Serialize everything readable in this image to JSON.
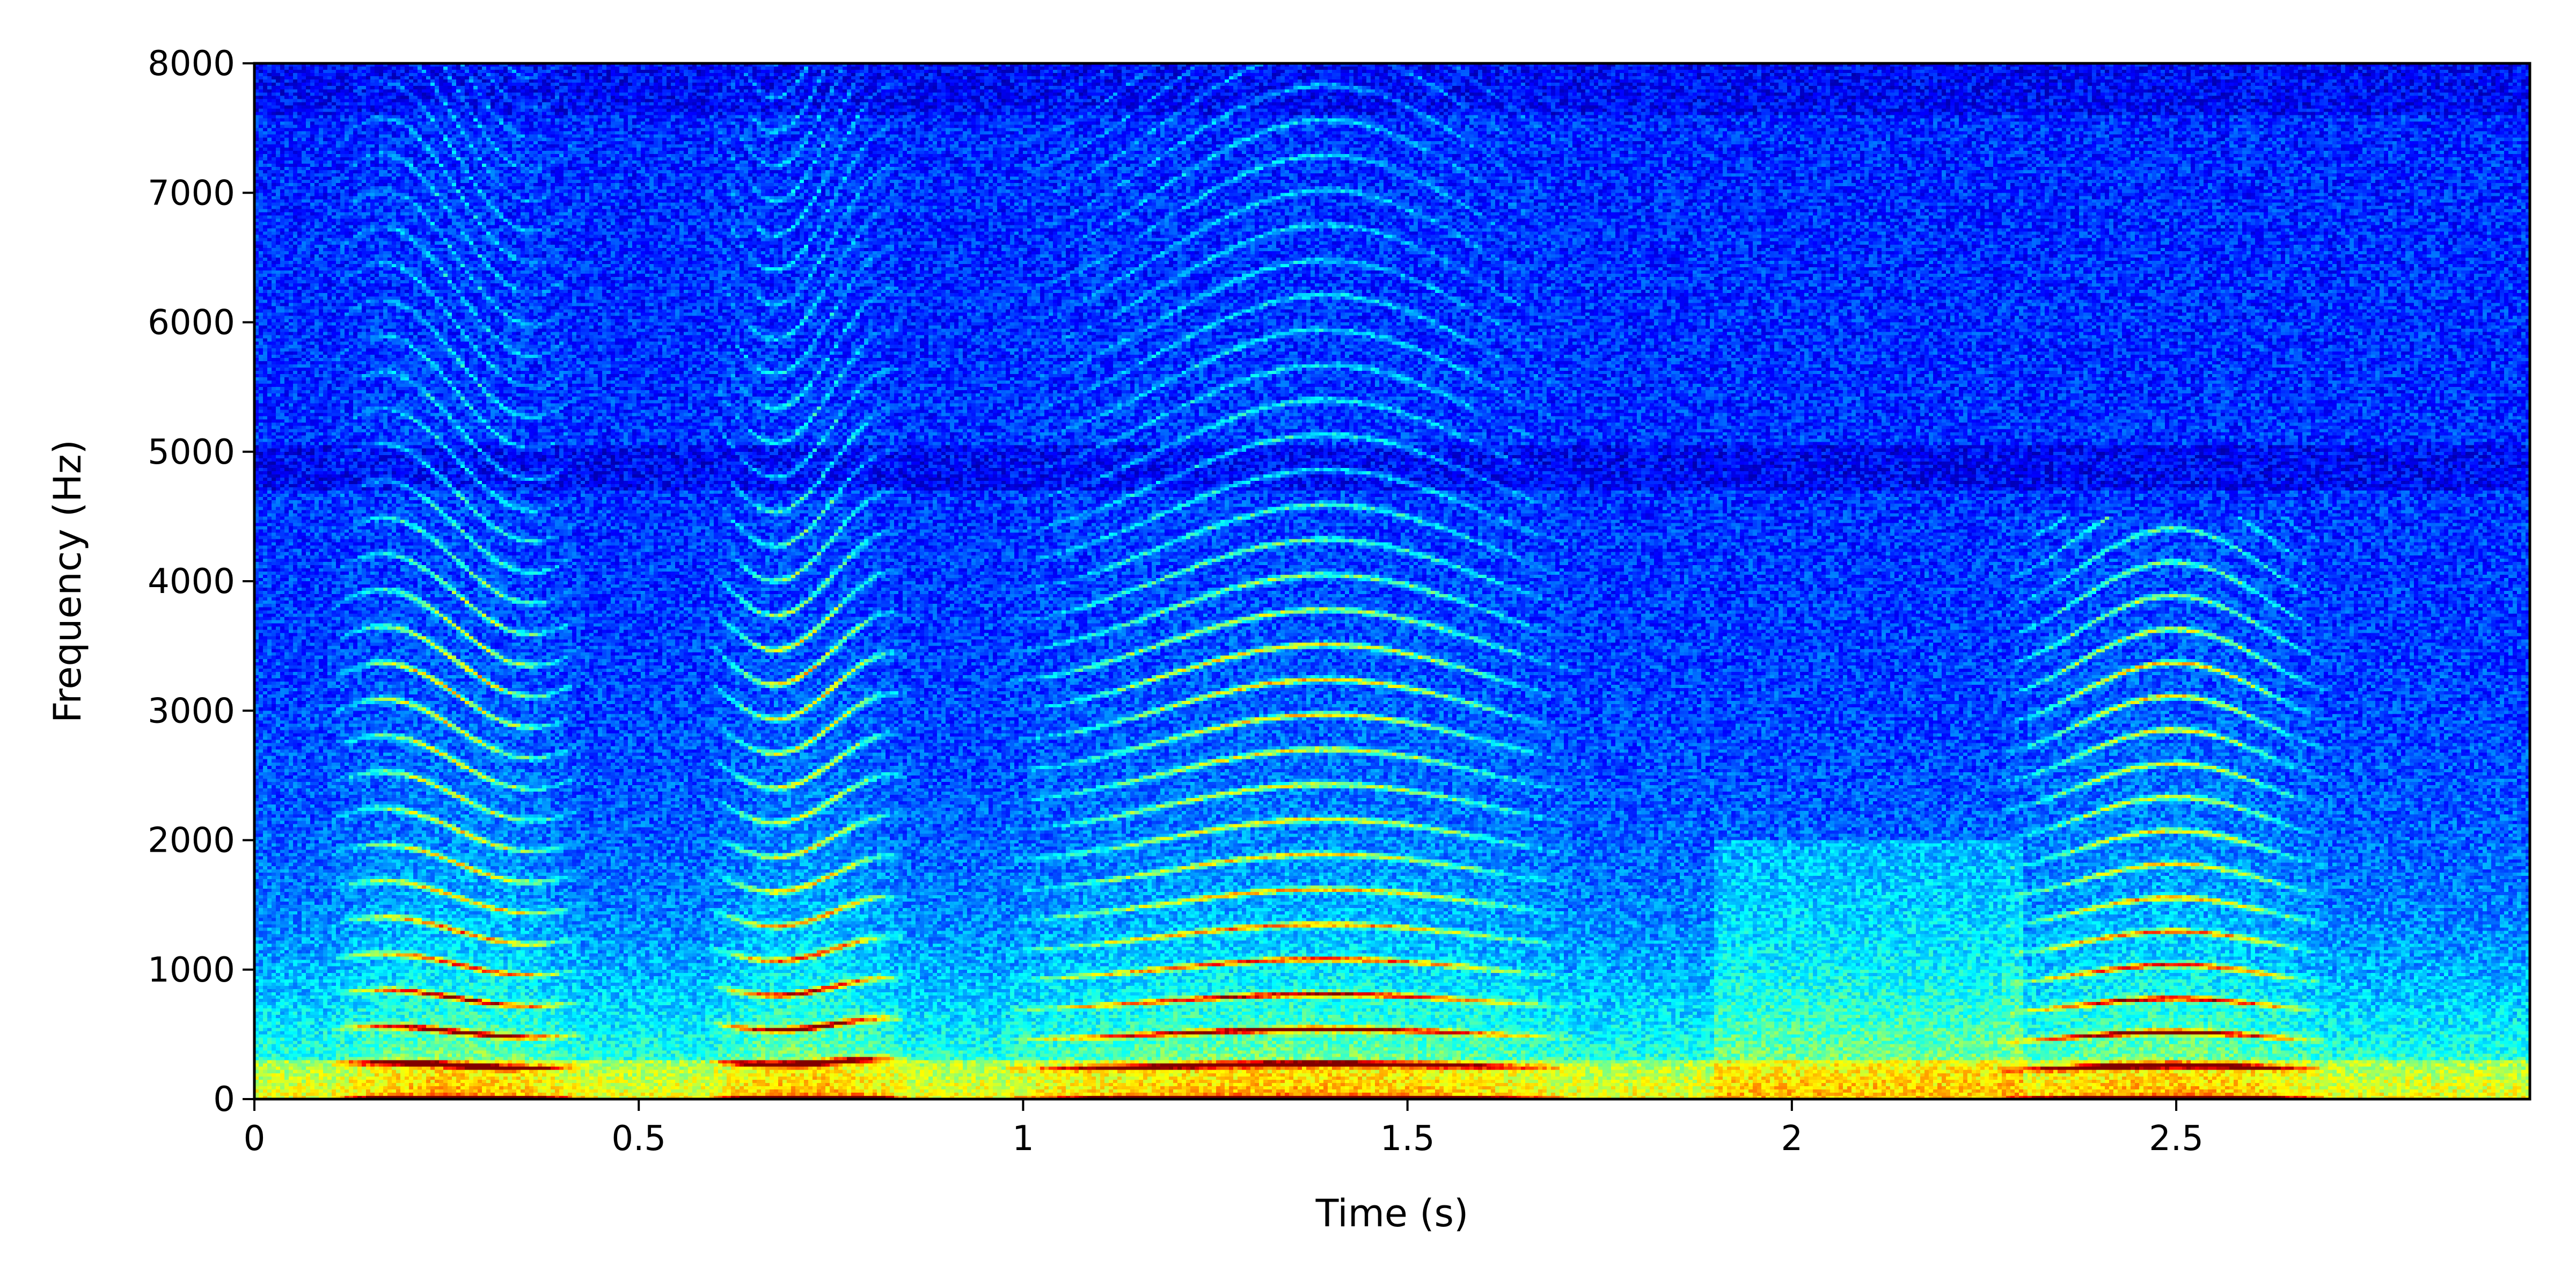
{
  "chart_data": {
    "type": "heatmap",
    "title": "",
    "xlabel": "Time (s)",
    "ylabel": "Frequency (Hz)",
    "xlim": [
      0,
      2.96
    ],
    "ylim": [
      0,
      8000
    ],
    "x_ticks": [
      0,
      0.5,
      1,
      1.5,
      2,
      2.5
    ],
    "x_tick_labels": [
      "0",
      "0.5",
      "1",
      "1.5",
      "2",
      "2.5"
    ],
    "y_ticks": [
      0,
      1000,
      2000,
      3000,
      4000,
      5000,
      6000,
      7000,
      8000
    ],
    "y_tick_labels": [
      "0",
      "1000",
      "2000",
      "3000",
      "4000",
      "5000",
      "6000",
      "7000",
      "8000"
    ],
    "grid": false,
    "colormap": "jet",
    "colormap_stops": [
      "#00008f",
      "#0000ff",
      "#00ffff",
      "#ffff00",
      "#ff0000",
      "#800000"
    ],
    "speech_segments": [
      {
        "start": 0.1,
        "end": 0.49,
        "f0": 260,
        "harmonics_upper_hz": 8000
      },
      {
        "start": 0.59,
        "end": 0.9,
        "f0": 290,
        "harmonics_upper_hz": 8000
      },
      {
        "start": 0.98,
        "end": 1.86,
        "f0": 250,
        "harmonics_upper_hz": 8000
      },
      {
        "start": 2.27,
        "end": 2.78,
        "f0": 240,
        "harmonics_upper_hz": 4500
      }
    ]
  }
}
